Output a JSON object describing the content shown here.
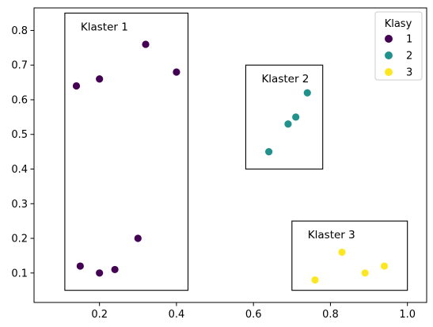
{
  "chart_data": {
    "type": "scatter",
    "xlim": [
      0.03,
      1.05
    ],
    "ylim": [
      0.015,
      0.865
    ],
    "xticks": [
      0.2,
      0.4,
      0.6,
      0.8,
      1.0
    ],
    "xtick_labels": [
      "0.2",
      "0.4",
      "0.6",
      "0.8",
      "1.0"
    ],
    "yticks": [
      0.1,
      0.2,
      0.3,
      0.4,
      0.5,
      0.6,
      0.7,
      0.8
    ],
    "ytick_labels": [
      "0.1",
      "0.2",
      "0.3",
      "0.4",
      "0.5",
      "0.6",
      "0.7",
      "0.8"
    ],
    "grid": false,
    "legend": {
      "title": "Klasy",
      "placement": "top-right",
      "entries": [
        "1",
        "2",
        "3"
      ]
    },
    "series": [
      {
        "name": "1",
        "color": "#440154",
        "points": [
          [
            0.14,
            0.64
          ],
          [
            0.2,
            0.66
          ],
          [
            0.32,
            0.76
          ],
          [
            0.4,
            0.68
          ],
          [
            0.15,
            0.12
          ],
          [
            0.2,
            0.1
          ],
          [
            0.24,
            0.11
          ],
          [
            0.3,
            0.2
          ]
        ]
      },
      {
        "name": "2",
        "color": "#21918c",
        "points": [
          [
            0.64,
            0.45
          ],
          [
            0.69,
            0.53
          ],
          [
            0.71,
            0.55
          ],
          [
            0.74,
            0.62
          ]
        ]
      },
      {
        "name": "3",
        "color": "#fde725",
        "points": [
          [
            0.76,
            0.08
          ],
          [
            0.83,
            0.16
          ],
          [
            0.89,
            0.1
          ],
          [
            0.94,
            0.12
          ]
        ]
      }
    ],
    "annotations": [
      {
        "label": "Klaster 1",
        "x0": 0.11,
        "y0": 0.05,
        "x1": 0.43,
        "y1": 0.85
      },
      {
        "label": "Klaster 2",
        "x0": 0.58,
        "y0": 0.4,
        "x1": 0.78,
        "y1": 0.7
      },
      {
        "label": "Klaster 3",
        "x0": 0.7,
        "y0": 0.05,
        "x1": 1.0,
        "y1": 0.25
      }
    ]
  }
}
